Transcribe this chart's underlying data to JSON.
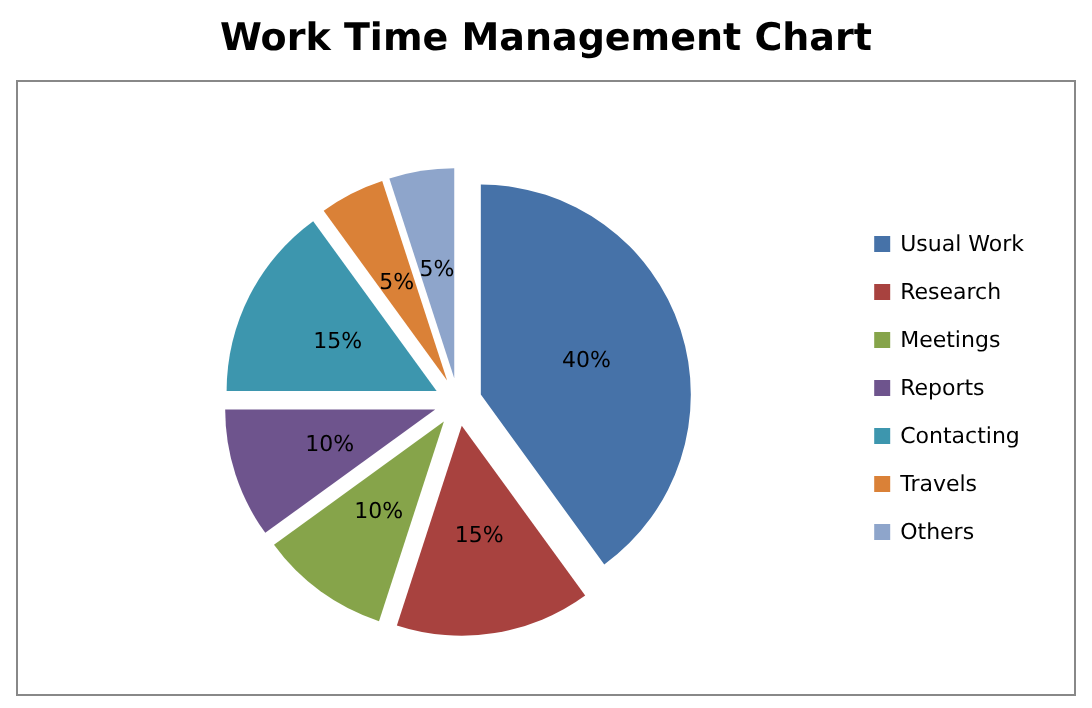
{
  "chart_data": {
    "type": "pie",
    "title": "Work Time Management Chart",
    "categories": [
      "Usual Work",
      "Research",
      "Meetings",
      "Reports",
      "Contacting",
      "Travels",
      "Others"
    ],
    "values": [
      40,
      15,
      10,
      10,
      15,
      5,
      5
    ],
    "colors": [
      "#4672a8",
      "#a8423f",
      "#86a44a",
      "#6e548d",
      "#3d96ae",
      "#da8137",
      "#8ea5cb"
    ],
    "value_labels": [
      "40%",
      "15%",
      "10%",
      "10%",
      "15%",
      "5%",
      "5%"
    ],
    "legend": "right"
  }
}
